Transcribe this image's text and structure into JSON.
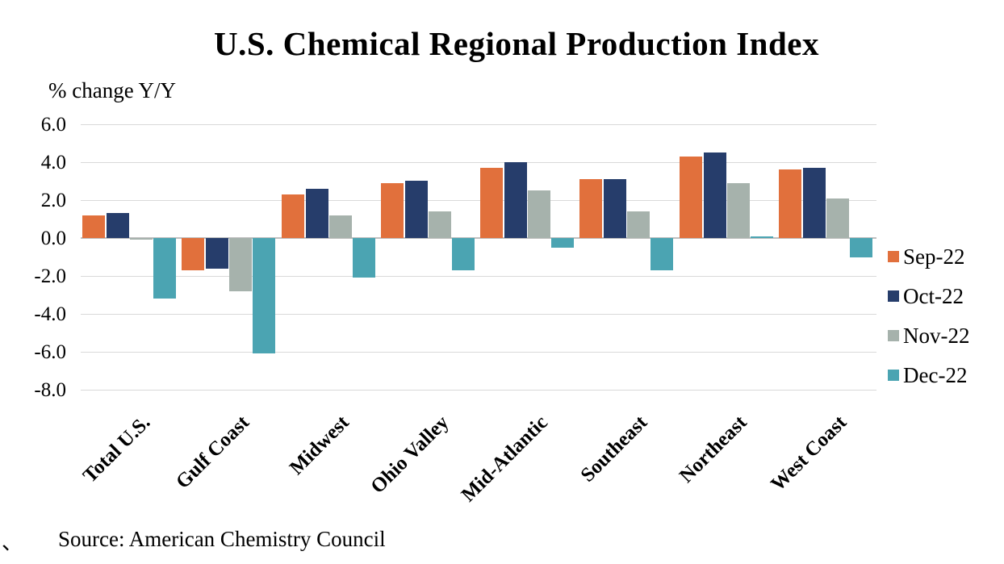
{
  "title": "U.S. Chemical Regional Production Index",
  "axis_note": "% change Y/Y",
  "source": "Source: American Chemistry Council",
  "decoration_mark": "、",
  "colors": {
    "sep": "#E1703C",
    "oct": "#263D6B",
    "nov": "#A6B2AC",
    "dec": "#4BA4B2",
    "gridline": "#D9D9D9",
    "zero_axis": "#BFBFBF"
  },
  "chart_data": {
    "type": "bar",
    "title": "U.S. Chemical Regional Production Index",
    "ylabel": "% change Y/Y",
    "xlabel": "",
    "categories": [
      "Total U.S.",
      "Gulf Coast",
      "Midwest",
      "Ohio Valley",
      "Mid-Atlantic",
      "Southeast",
      "Northeast",
      "West Coast"
    ],
    "series": [
      {
        "name": "Sep-22",
        "color": "#E1703C",
        "values": [
          1.2,
          -1.7,
          2.3,
          2.9,
          3.7,
          3.1,
          4.3,
          3.6
        ]
      },
      {
        "name": "Oct-22",
        "color": "#263D6B",
        "values": [
          1.3,
          -1.6,
          2.6,
          3.0,
          4.0,
          3.1,
          4.5,
          3.7
        ]
      },
      {
        "name": "Nov-22",
        "color": "#A6B2AC",
        "values": [
          -0.1,
          -2.8,
          1.2,
          1.4,
          2.5,
          1.4,
          2.9,
          2.1
        ]
      },
      {
        "name": "Dec-22",
        "color": "#4BA4B2",
        "values": [
          -3.2,
          -6.1,
          -2.1,
          -1.7,
          -0.5,
          -1.7,
          0.1,
          -1.0
        ]
      }
    ],
    "ylim": [
      -8.0,
      6.0
    ],
    "ytick_step": 2.0,
    "yticks": [
      "6.0",
      "4.0",
      "2.0",
      "0.0",
      "-2.0",
      "-4.0",
      "-6.0",
      "-8.0"
    ],
    "grid": true,
    "legend_position": "right",
    "bar_gap_within_group": "none",
    "x_label_rotation_deg": -45
  }
}
